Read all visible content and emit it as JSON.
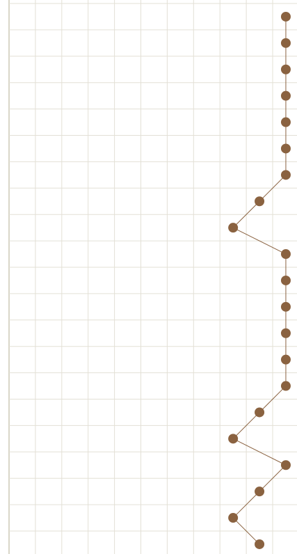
{
  "chart_data": {
    "type": "line",
    "title": "",
    "xlabel": "",
    "ylabel": "",
    "grid": true,
    "legend": "none",
    "xlim": [
      0,
      11
    ],
    "ylim": [
      0,
      21
    ],
    "y_inverted": true,
    "series": [
      {
        "markers": true,
        "points": [
          {
            "x": 10.5,
            "y": 0.5
          },
          {
            "x": 10.5,
            "y": 1.5
          },
          {
            "x": 10.5,
            "y": 2.5
          },
          {
            "x": 10.5,
            "y": 3.5
          },
          {
            "x": 10.5,
            "y": 4.5
          },
          {
            "x": 10.5,
            "y": 5.5
          },
          {
            "x": 10.5,
            "y": 6.5
          },
          {
            "x": 9.5,
            "y": 7.5
          },
          {
            "x": 8.5,
            "y": 8.5
          },
          {
            "x": 10.5,
            "y": 9.5
          },
          {
            "x": 10.5,
            "y": 10.5
          },
          {
            "x": 10.5,
            "y": 11.5
          },
          {
            "x": 10.5,
            "y": 12.5
          },
          {
            "x": 10.5,
            "y": 13.5
          },
          {
            "x": 10.5,
            "y": 14.5
          },
          {
            "x": 9.5,
            "y": 15.5
          },
          {
            "x": 8.5,
            "y": 16.5
          },
          {
            "x": 10.5,
            "y": 17.5
          },
          {
            "x": 9.5,
            "y": 18.5
          },
          {
            "x": 8.5,
            "y": 19.5
          },
          {
            "x": 9.5,
            "y": 20.5
          }
        ]
      }
    ]
  },
  "colors": {
    "background": "#ffffff",
    "grid": "#e3e0d6",
    "axis": "#d9d6c8",
    "marker": "#8a6240",
    "line": "#8a6240"
  }
}
